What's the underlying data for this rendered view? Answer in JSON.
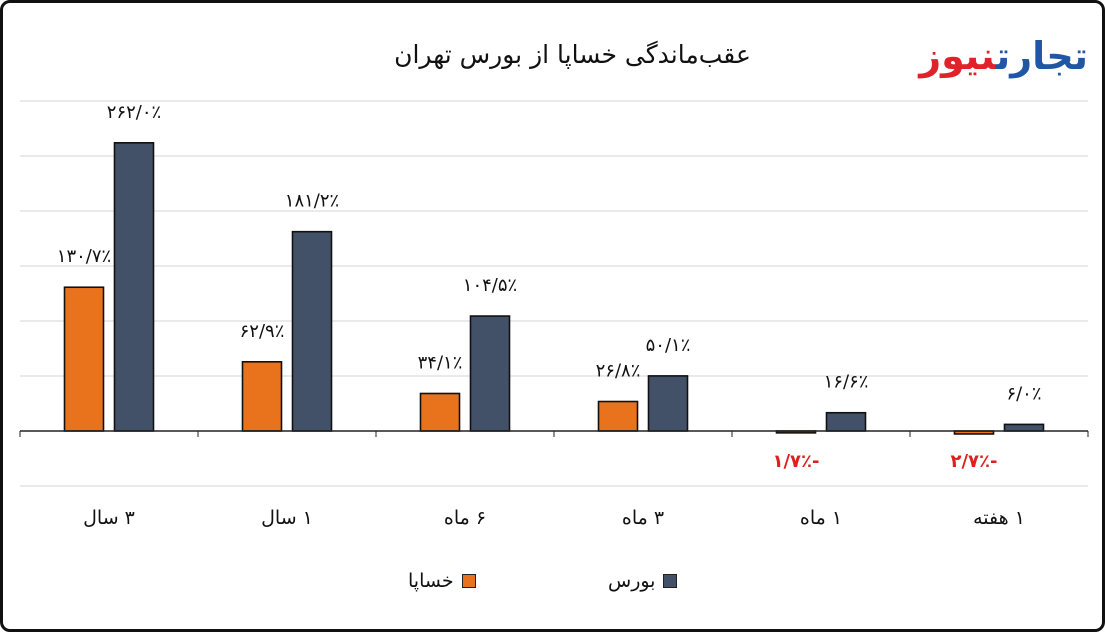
{
  "brand": {
    "logo_part1": "تجارت",
    "logo_part2": "نیوز"
  },
  "colors": {
    "khasapa": "#e8731c",
    "bourse": "#435168",
    "negative_label": "#e02020"
  },
  "chart_data": {
    "type": "bar",
    "title": "عقب‌ماندگی خساپا از بورس تهران",
    "categories": [
      "1 هفته",
      "1 ماه",
      "3 ماه",
      "6 ماه",
      "1 سال",
      "3 سال"
    ],
    "series": [
      {
        "name": "خساپا",
        "values": [
          -2.7,
          -1.7,
          26.8,
          34.1,
          62.9,
          130.7
        ],
        "labels": [
          "۲/۷٪-",
          "۱/۷٪-",
          "۲۶/۸٪",
          "۳۴/۱٪",
          "۶۲/۹٪",
          "۱۳۰/۷٪"
        ]
      },
      {
        "name": "بورس",
        "values": [
          6.0,
          16.6,
          50.1,
          104.5,
          181.2,
          262.0
        ],
        "labels": [
          "۶/۰٪",
          "۱۶/۶٪",
          "۵۰/۱٪",
          "۱۰۴/۵٪",
          "۱۸۱/۲٪",
          "۲۶۲/۰٪"
        ]
      }
    ],
    "category_labels": [
      "۱ هفته",
      "۱ ماه",
      "۳ ماه",
      "۶ ماه",
      "۱ سال",
      "۳ سال"
    ],
    "ylim": [
      -50,
      300
    ],
    "grid": true,
    "legend_position": "bottom"
  }
}
